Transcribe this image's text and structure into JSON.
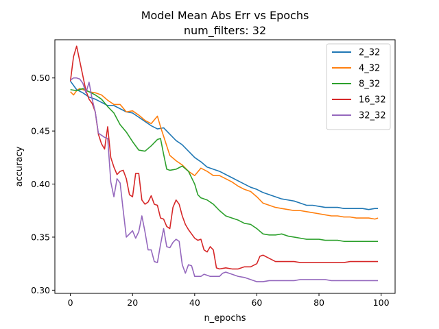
{
  "chart_data": {
    "type": "line",
    "title": "Model Mean Abs Err vs Epochs",
    "subtitle": "num_filters: 32",
    "xlabel": "n_epochs",
    "ylabel": "accuracy",
    "xlim": [
      -5,
      104.5
    ],
    "ylim": [
      0.297,
      0.536
    ],
    "xticks": [
      0,
      20,
      40,
      60,
      80,
      100
    ],
    "yticks": [
      0.3,
      0.35,
      0.4,
      0.45,
      0.5
    ],
    "ytick_labels": [
      "0.30",
      "0.35",
      "0.40",
      "0.45",
      "0.50"
    ],
    "grid": false,
    "legend_position": "top-right",
    "series": [
      {
        "name": "2_32",
        "color": "#1f77b4",
        "x": [
          0,
          2,
          4,
          6,
          8,
          10,
          12,
          14,
          16,
          18,
          20,
          22,
          24,
          26,
          28,
          30,
          32,
          34,
          36,
          38,
          40,
          42,
          44,
          46,
          48,
          50,
          52,
          54,
          56,
          58,
          60,
          62,
          64,
          66,
          68,
          70,
          72,
          74,
          76,
          78,
          80,
          82,
          84,
          86,
          88,
          90,
          92,
          94,
          96,
          98,
          99
        ],
        "y": [
          0.497,
          0.489,
          0.486,
          0.482,
          0.48,
          0.477,
          0.474,
          0.474,
          0.471,
          0.468,
          0.467,
          0.463,
          0.459,
          0.455,
          0.452,
          0.453,
          0.447,
          0.441,
          0.437,
          0.431,
          0.425,
          0.421,
          0.416,
          0.414,
          0.412,
          0.409,
          0.406,
          0.403,
          0.4,
          0.397,
          0.395,
          0.392,
          0.39,
          0.388,
          0.386,
          0.385,
          0.384,
          0.382,
          0.38,
          0.38,
          0.379,
          0.378,
          0.378,
          0.378,
          0.377,
          0.377,
          0.377,
          0.377,
          0.376,
          0.377,
          0.377
        ]
      },
      {
        "name": "4_32",
        "color": "#ff7f0e",
        "x": [
          0,
          1,
          2,
          3,
          4,
          6,
          8,
          10,
          12,
          14,
          16,
          18,
          20,
          22,
          24,
          26,
          28,
          29,
          30,
          32,
          34,
          36,
          38,
          40,
          42,
          44,
          46,
          48,
          50,
          52,
          54,
          56,
          58,
          60,
          62,
          64,
          66,
          68,
          70,
          72,
          74,
          76,
          78,
          80,
          82,
          84,
          86,
          88,
          90,
          92,
          94,
          96,
          98,
          99
        ],
        "y": [
          0.487,
          0.484,
          0.488,
          0.49,
          0.489,
          0.487,
          0.486,
          0.484,
          0.479,
          0.475,
          0.475,
          0.468,
          0.469,
          0.465,
          0.46,
          0.457,
          0.464,
          0.454,
          0.445,
          0.427,
          0.422,
          0.418,
          0.412,
          0.408,
          0.415,
          0.412,
          0.408,
          0.408,
          0.405,
          0.402,
          0.398,
          0.395,
          0.393,
          0.388,
          0.382,
          0.38,
          0.378,
          0.377,
          0.376,
          0.375,
          0.375,
          0.374,
          0.373,
          0.372,
          0.371,
          0.37,
          0.37,
          0.369,
          0.369,
          0.368,
          0.368,
          0.368,
          0.367,
          0.368
        ]
      },
      {
        "name": "8_32",
        "color": "#2ca02c",
        "x": [
          0,
          2,
          4,
          6,
          8,
          10,
          12,
          14,
          16,
          18,
          20,
          22,
          24,
          26,
          28,
          29,
          30,
          31,
          32,
          34,
          36,
          38,
          40,
          41,
          42,
          44,
          46,
          48,
          50,
          52,
          54,
          56,
          58,
          60,
          62,
          64,
          66,
          68,
          70,
          72,
          74,
          76,
          78,
          80,
          82,
          84,
          86,
          88,
          90,
          92,
          94,
          96,
          98,
          99
        ],
        "y": [
          0.489,
          0.488,
          0.49,
          0.487,
          0.484,
          0.48,
          0.473,
          0.467,
          0.456,
          0.449,
          0.44,
          0.432,
          0.431,
          0.436,
          0.442,
          0.443,
          0.428,
          0.414,
          0.413,
          0.414,
          0.417,
          0.412,
          0.4,
          0.39,
          0.387,
          0.385,
          0.381,
          0.375,
          0.37,
          0.368,
          0.366,
          0.363,
          0.362,
          0.358,
          0.353,
          0.352,
          0.352,
          0.353,
          0.351,
          0.35,
          0.349,
          0.348,
          0.348,
          0.348,
          0.347,
          0.347,
          0.347,
          0.346,
          0.346,
          0.346,
          0.346,
          0.346,
          0.346,
          0.346
        ]
      },
      {
        "name": "16_32",
        "color": "#d62728",
        "x": [
          0,
          1,
          2,
          3,
          4,
          5,
          6,
          7,
          8,
          9,
          10,
          11,
          12,
          13,
          14,
          15,
          16,
          17,
          18,
          19,
          20,
          21,
          22,
          23,
          24,
          25,
          26,
          27,
          28,
          29,
          30,
          31,
          32,
          33,
          34,
          35,
          36,
          37,
          38,
          39,
          40,
          41,
          42,
          43,
          44,
          45,
          46,
          47,
          48,
          50,
          52,
          54,
          56,
          58,
          60,
          61,
          62,
          64,
          66,
          68,
          70,
          72,
          74,
          76,
          78,
          80,
          82,
          84,
          86,
          88,
          90,
          92,
          94,
          96,
          98,
          99
        ],
        "y": [
          0.497,
          0.52,
          0.53,
          0.516,
          0.502,
          0.488,
          0.48,
          0.476,
          0.468,
          0.447,
          0.438,
          0.433,
          0.454,
          0.425,
          0.416,
          0.409,
          0.412,
          0.413,
          0.405,
          0.39,
          0.388,
          0.41,
          0.41,
          0.385,
          0.381,
          0.383,
          0.389,
          0.381,
          0.38,
          0.368,
          0.367,
          0.36,
          0.358,
          0.378,
          0.385,
          0.381,
          0.37,
          0.362,
          0.357,
          0.353,
          0.349,
          0.347,
          0.348,
          0.338,
          0.336,
          0.341,
          0.338,
          0.321,
          0.32,
          0.321,
          0.32,
          0.32,
          0.322,
          0.322,
          0.325,
          0.332,
          0.333,
          0.33,
          0.327,
          0.327,
          0.327,
          0.327,
          0.326,
          0.326,
          0.326,
          0.326,
          0.326,
          0.326,
          0.326,
          0.326,
          0.327,
          0.327,
          0.327,
          0.327,
          0.327,
          0.327
        ]
      },
      {
        "name": "32_32",
        "color": "#9467bd",
        "x": [
          0,
          1,
          2,
          3,
          4,
          5,
          6,
          7,
          8,
          9,
          10,
          11,
          12,
          13,
          14,
          15,
          16,
          17,
          18,
          19,
          20,
          21,
          22,
          23,
          24,
          25,
          26,
          27,
          28,
          29,
          30,
          31,
          32,
          33,
          34,
          35,
          36,
          37,
          38,
          39,
          40,
          41,
          42,
          43,
          44,
          45,
          46,
          47,
          48,
          49,
          50,
          52,
          54,
          56,
          58,
          60,
          62,
          64,
          66,
          68,
          70,
          72,
          74,
          76,
          78,
          80,
          82,
          84,
          86,
          88,
          90,
          92,
          94,
          96,
          98,
          99
        ],
        "y": [
          0.498,
          0.5,
          0.5,
          0.499,
          0.495,
          0.486,
          0.496,
          0.48,
          0.468,
          0.448,
          0.446,
          0.444,
          0.443,
          0.402,
          0.388,
          0.405,
          0.401,
          0.375,
          0.35,
          0.353,
          0.356,
          0.349,
          0.355,
          0.37,
          0.355,
          0.338,
          0.338,
          0.327,
          0.326,
          0.343,
          0.358,
          0.341,
          0.34,
          0.345,
          0.348,
          0.346,
          0.324,
          0.316,
          0.324,
          0.323,
          0.313,
          0.313,
          0.313,
          0.315,
          0.314,
          0.313,
          0.313,
          0.313,
          0.313,
          0.316,
          0.317,
          0.315,
          0.313,
          0.312,
          0.31,
          0.308,
          0.308,
          0.309,
          0.309,
          0.309,
          0.309,
          0.309,
          0.31,
          0.31,
          0.31,
          0.31,
          0.31,
          0.309,
          0.309,
          0.309,
          0.309,
          0.309,
          0.309,
          0.309,
          0.309,
          0.309
        ]
      }
    ]
  }
}
